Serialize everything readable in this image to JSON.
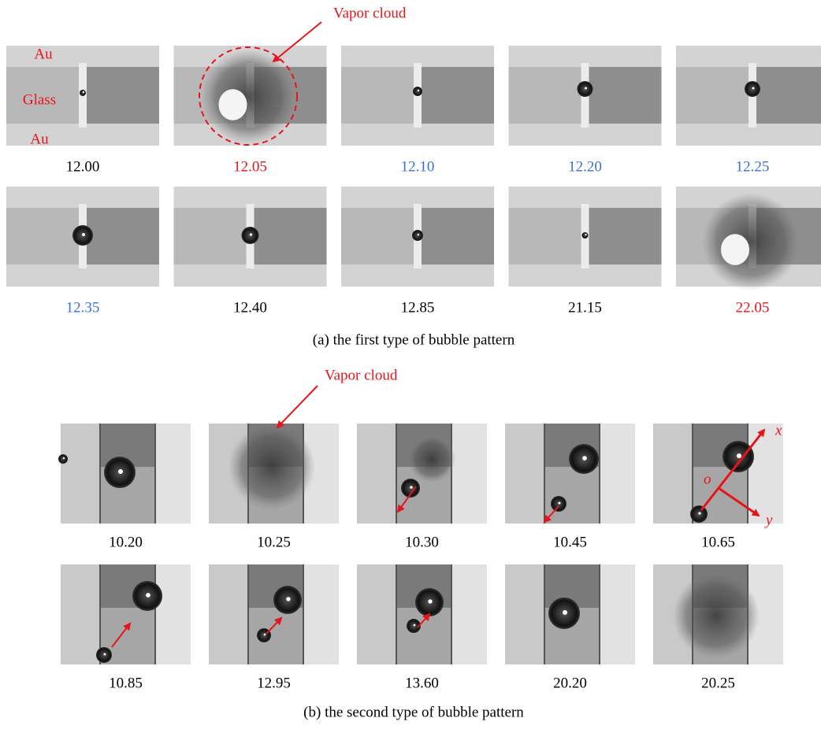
{
  "panel_a": {
    "annotation": "Vapor cloud",
    "labels": {
      "au_top": "Au",
      "glass": "Glass",
      "au_bottom": "Au"
    },
    "frames": [
      {
        "time": "12.00",
        "color": "#000000"
      },
      {
        "time": "12.05",
        "color": "#e8141b"
      },
      {
        "time": "12.10",
        "color": "#3a6fd8"
      },
      {
        "time": "12.20",
        "color": "#3a6fd8"
      },
      {
        "time": "12.25",
        "color": "#3a6fd8"
      },
      {
        "time": "12.35",
        "color": "#3a6fd8"
      },
      {
        "time": "12.40",
        "color": "#000000"
      },
      {
        "time": "12.85",
        "color": "#000000"
      },
      {
        "time": "21.15",
        "color": "#000000"
      },
      {
        "time": "22.05",
        "color": "#e8141b"
      }
    ],
    "caption": "(a) the first type of bubble pattern"
  },
  "panel_b": {
    "annotation": "Vapor cloud",
    "axes": {
      "x": "x",
      "y": "y",
      "origin": "o"
    },
    "frames": [
      {
        "time": "10.20",
        "color": "#000000"
      },
      {
        "time": "10.25",
        "color": "#000000"
      },
      {
        "time": "10.30",
        "color": "#000000"
      },
      {
        "time": "10.45",
        "color": "#000000"
      },
      {
        "time": "10.65",
        "color": "#000000"
      },
      {
        "time": "10.85",
        "color": "#000000"
      },
      {
        "time": "12.95",
        "color": "#000000"
      },
      {
        "time": "13.60",
        "color": "#000000"
      },
      {
        "time": "20.20",
        "color": "#000000"
      },
      {
        "time": "20.25",
        "color": "#000000"
      }
    ],
    "caption": "(b) the second type of bubble pattern"
  }
}
